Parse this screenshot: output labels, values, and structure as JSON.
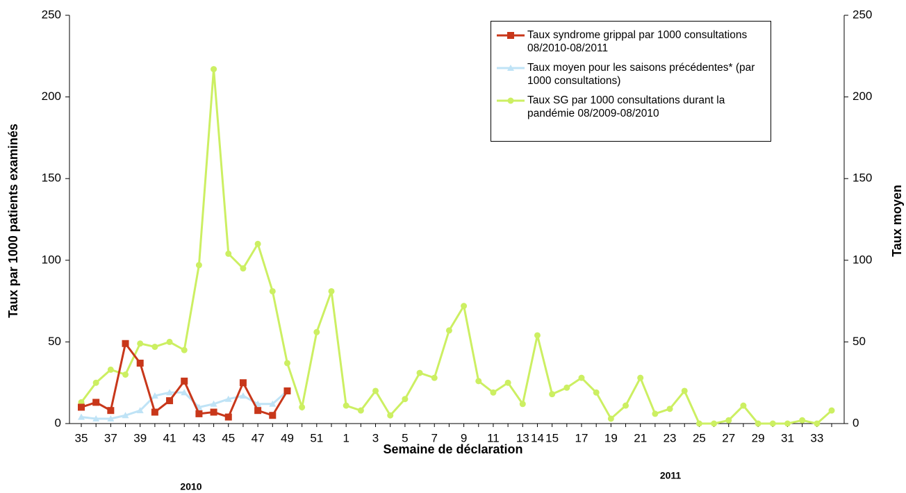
{
  "chart_data": {
    "type": "line",
    "x_label": "Semaine de déclaration",
    "y_label": "Taux par 1000 patients examinés",
    "y2_label": "Taux moyen",
    "annotations": [
      "2010",
      "2011"
    ],
    "categories": [
      "35",
      null,
      "37",
      null,
      "39",
      null,
      "41",
      null,
      "43",
      null,
      "45",
      null,
      "47",
      null,
      "49",
      null,
      "51",
      null,
      "1",
      null,
      "3",
      null,
      "5",
      null,
      "7",
      null,
      "9",
      null,
      "11",
      null,
      "13",
      "14",
      "15",
      null,
      "17",
      null,
      "19",
      null,
      "21",
      null,
      "23",
      null,
      "25",
      null,
      "27",
      null,
      "29",
      null,
      "31",
      null,
      "33",
      null
    ],
    "series": [
      {
        "name": "Taux syndrome grippal par 1000 consultations 08/2010-08/2011",
        "color": "#c8371a",
        "marker": "square",
        "values": [
          10,
          13,
          8,
          49,
          37,
          7,
          14,
          26,
          6,
          7,
          4,
          25,
          8,
          5,
          20,
          null,
          null,
          null,
          null,
          null,
          null,
          null,
          null,
          null,
          null,
          null,
          null,
          null,
          null,
          null,
          null,
          null,
          null,
          null,
          null,
          null,
          null,
          null,
          null,
          null,
          null,
          null,
          null,
          null,
          null,
          null,
          null,
          null,
          null,
          null,
          null,
          null
        ]
      },
      {
        "name": "Taux moyen pour les saisons précédentes* (par 1000 consultations)",
        "color": "#bfe3f6",
        "marker": "triangle",
        "values": [
          4,
          3,
          3,
          5,
          8,
          17,
          19,
          19,
          10,
          12,
          15,
          17,
          12,
          12,
          20,
          null,
          null,
          null,
          null,
          null,
          null,
          null,
          null,
          null,
          null,
          null,
          null,
          null,
          null,
          null,
          null,
          null,
          null,
          null,
          null,
          null,
          null,
          null,
          null,
          null,
          null,
          null,
          null,
          null,
          null,
          null,
          null,
          null,
          null,
          null,
          null,
          null
        ]
      },
      {
        "name": "Taux SG  par 1000 consultations durant la pandémie 08/2009-08/2010",
        "color": "#ccef62",
        "marker": "circle",
        "values": [
          13,
          25,
          33,
          30,
          49,
          47,
          50,
          45,
          97,
          217,
          104,
          95,
          110,
          81,
          37,
          10,
          56,
          81,
          11,
          8,
          20,
          5,
          15,
          31,
          28,
          57,
          72,
          26,
          19,
          25,
          12,
          54,
          18,
          22,
          28,
          19,
          3,
          11,
          28,
          6,
          9,
          20,
          0,
          0,
          2,
          11,
          0,
          0,
          0,
          2,
          0,
          8
        ]
      }
    ],
    "ylim": [
      0,
      250
    ],
    "yticks": [
      0,
      50,
      100,
      150,
      200,
      250
    ],
    "y2lim": [
      0,
      250
    ],
    "y2ticks": [
      0,
      50,
      100,
      150,
      200,
      250
    ],
    "grid": false
  }
}
